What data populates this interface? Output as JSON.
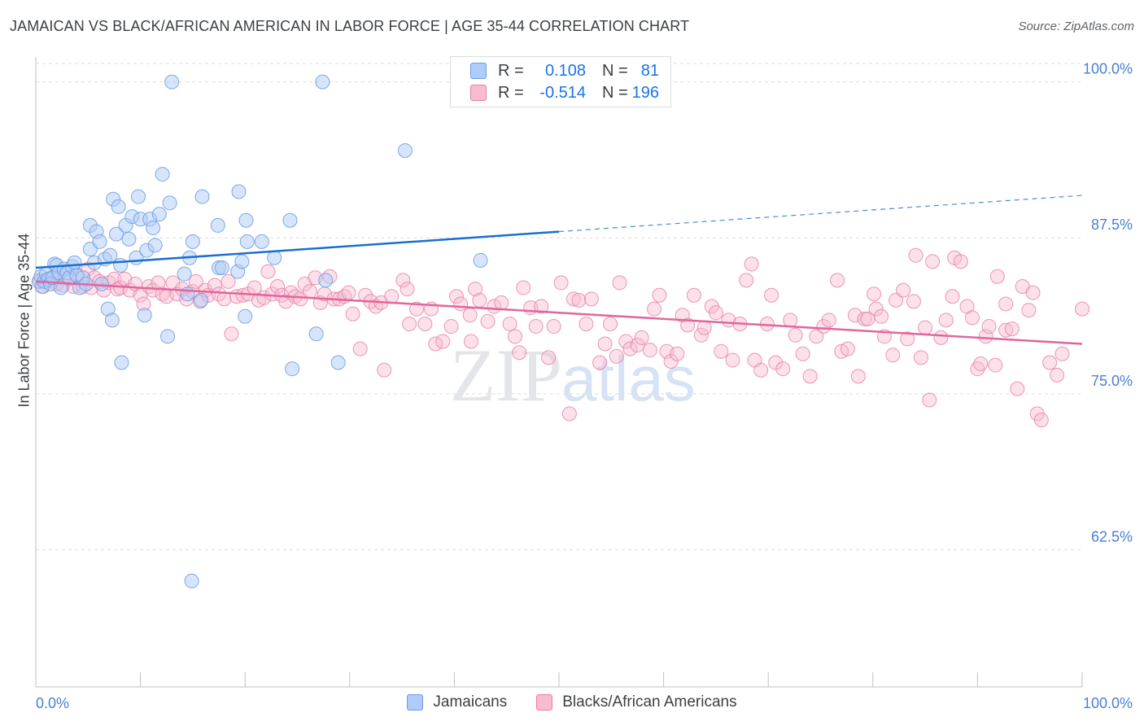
{
  "title": "JAMAICAN VS BLACK/AFRICAN AMERICAN IN LABOR FORCE | AGE 35-44 CORRELATION CHART",
  "source": "Source: ZipAtlas.com",
  "watermark": {
    "zip": "ZIP",
    "atlas": "atlas"
  },
  "legend": {
    "r_label": "R =",
    "n_label": "N =",
    "rows": [
      {
        "r": "0.108",
        "n": "81"
      },
      {
        "r": "-0.514",
        "n": "196"
      }
    ]
  },
  "colors": {
    "jamaican_fill": "#aecbfa",
    "jamaican_stroke": "#6c9be0",
    "jamaican_line": "#1a6fcf",
    "black_fill": "#f8bbd0",
    "black_stroke": "#e67ea6",
    "black_line": "#e0679a",
    "axis_label": "#4a7fd4",
    "grid": "#dadce0"
  },
  "chart_data": {
    "type": "scatter",
    "title": "JAMAICAN VS BLACK/AFRICAN AMERICAN IN LABOR FORCE | AGE 35-44 CORRELATION CHART",
    "xlabel": "",
    "ylabel": "In Labor Force | Age 35-44",
    "xlim": [
      0,
      100
    ],
    "ylim": [
      51.5,
      102
    ],
    "x_tick_labels": [
      "0.0%",
      "100.0%"
    ],
    "y_ticks": [
      62.5,
      75.0,
      87.5,
      100.0
    ],
    "y_tick_labels": [
      "62.5%",
      "75.0%",
      "87.5%",
      "100.0%"
    ],
    "grid": true,
    "legend_position": "bottom",
    "series": [
      {
        "name": "Jamaicans",
        "r": 0.108,
        "n": 81,
        "trend": {
          "x0": 0,
          "y0": 85.1,
          "x1": 50,
          "y1": 88.0,
          "dash_to_x": 100,
          "dash_to_y": 90.9
        },
        "points": [
          [
            0.3,
            84.0
          ],
          [
            0.5,
            84.4
          ],
          [
            0.6,
            83.6
          ],
          [
            0.8,
            84.0
          ],
          [
            1.0,
            84.6
          ],
          [
            1.2,
            84.2
          ],
          [
            1.4,
            83.8
          ],
          [
            1.6,
            84.3
          ],
          [
            1.8,
            85.4
          ],
          [
            2.0,
            85.3
          ],
          [
            2.2,
            84.7
          ],
          [
            2.4,
            83.5
          ],
          [
            2.7,
            85.0
          ],
          [
            3.0,
            84.7
          ],
          [
            3.2,
            84.3
          ],
          [
            3.5,
            85.2
          ],
          [
            3.7,
            85.5
          ],
          [
            3.9,
            84.5
          ],
          [
            4.2,
            83.5
          ],
          [
            4.5,
            84.3
          ],
          [
            4.8,
            83.8
          ],
          [
            5.2,
            86.6
          ],
          [
            5.2,
            88.5
          ],
          [
            5.6,
            85.5
          ],
          [
            5.8,
            88.0
          ],
          [
            6.1,
            87.2
          ],
          [
            6.3,
            83.8
          ],
          [
            6.6,
            85.8
          ],
          [
            6.9,
            81.8
          ],
          [
            7.1,
            86.1
          ],
          [
            7.3,
            80.9
          ],
          [
            7.4,
            90.6
          ],
          [
            7.7,
            87.8
          ],
          [
            7.9,
            90.0
          ],
          [
            8.1,
            85.3
          ],
          [
            8.2,
            77.5
          ],
          [
            8.6,
            88.5
          ],
          [
            8.9,
            87.4
          ],
          [
            9.2,
            89.2
          ],
          [
            9.6,
            85.9
          ],
          [
            9.8,
            90.8
          ],
          [
            10.0,
            89.0
          ],
          [
            10.4,
            81.3
          ],
          [
            10.6,
            86.5
          ],
          [
            10.9,
            89.0
          ],
          [
            11.2,
            88.3
          ],
          [
            11.4,
            86.9
          ],
          [
            11.8,
            89.4
          ],
          [
            12.1,
            92.6
          ],
          [
            12.6,
            79.6
          ],
          [
            12.8,
            90.3
          ],
          [
            13.0,
            100.0
          ],
          [
            14.2,
            84.6
          ],
          [
            14.5,
            83.0
          ],
          [
            14.7,
            85.9
          ],
          [
            15.0,
            87.2
          ],
          [
            14.9,
            60.0
          ],
          [
            15.8,
            82.5
          ],
          [
            15.9,
            90.8
          ],
          [
            17.4,
            88.5
          ],
          [
            17.5,
            85.1
          ],
          [
            17.8,
            85.1
          ],
          [
            19.3,
            84.8
          ],
          [
            19.4,
            91.2
          ],
          [
            19.7,
            85.6
          ],
          [
            20.0,
            81.2
          ],
          [
            20.1,
            88.9
          ],
          [
            20.2,
            87.2
          ],
          [
            21.6,
            87.2
          ],
          [
            22.8,
            85.9
          ],
          [
            24.3,
            88.9
          ],
          [
            24.5,
            77.0
          ],
          [
            26.8,
            79.8
          ],
          [
            27.4,
            100.0
          ],
          [
            27.7,
            84.1
          ],
          [
            28.9,
            77.5
          ],
          [
            35.3,
            94.5
          ],
          [
            42.5,
            85.7
          ]
        ]
      },
      {
        "name": "Blacks/African Americans",
        "r": -0.514,
        "n": 196,
        "trend": {
          "x0": 0,
          "y0": 84.0,
          "x1": 100,
          "y1": 79.0
        },
        "points": [
          [
            0.4,
            84.1
          ],
          [
            0.7,
            83.6
          ],
          [
            1.0,
            84.0
          ],
          [
            1.5,
            84.3
          ],
          [
            1.8,
            84.4
          ],
          [
            2.0,
            83.8
          ],
          [
            2.3,
            84.3
          ],
          [
            2.6,
            83.7
          ],
          [
            3.2,
            84.2
          ],
          [
            3.6,
            83.6
          ],
          [
            4.0,
            84.5
          ],
          [
            4.5,
            83.6
          ],
          [
            5.0,
            85.0
          ],
          [
            5.3,
            83.5
          ],
          [
            5.6,
            84.3
          ],
          [
            6.1,
            84.0
          ],
          [
            6.5,
            83.3
          ],
          [
            7.0,
            83.9
          ],
          [
            7.5,
            84.2
          ],
          [
            7.8,
            83.4
          ],
          [
            8.1,
            83.5
          ],
          [
            8.5,
            84.2
          ],
          [
            9.0,
            83.3
          ],
          [
            9.5,
            83.8
          ],
          [
            10.0,
            82.9
          ],
          [
            10.3,
            82.2
          ],
          [
            10.8,
            83.6
          ],
          [
            11.2,
            83.3
          ],
          [
            11.7,
            83.9
          ],
          [
            12.1,
            83.0
          ],
          [
            12.5,
            82.8
          ],
          [
            13.1,
            83.9
          ],
          [
            13.5,
            83.0
          ],
          [
            14.0,
            83.4
          ],
          [
            14.4,
            82.6
          ],
          [
            15.0,
            83.2
          ],
          [
            15.3,
            84.0
          ],
          [
            15.7,
            82.4
          ],
          [
            16.2,
            83.3
          ],
          [
            16.5,
            82.9
          ],
          [
            17.1,
            83.7
          ],
          [
            17.5,
            83.0
          ],
          [
            18.0,
            82.6
          ],
          [
            18.4,
            84.0
          ],
          [
            18.7,
            79.8
          ],
          [
            19.2,
            82.8
          ],
          [
            19.8,
            82.9
          ],
          [
            20.3,
            83.0
          ],
          [
            20.9,
            83.5
          ],
          [
            21.3,
            82.5
          ],
          [
            21.8,
            82.7
          ],
          [
            22.2,
            84.8
          ],
          [
            22.6,
            83.0
          ],
          [
            23.1,
            83.6
          ],
          [
            23.5,
            82.9
          ],
          [
            23.9,
            82.4
          ],
          [
            24.4,
            83.1
          ],
          [
            24.8,
            82.8
          ],
          [
            25.3,
            82.6
          ],
          [
            25.7,
            83.8
          ],
          [
            26.2,
            83.2
          ],
          [
            26.7,
            84.3
          ],
          [
            27.2,
            82.3
          ],
          [
            27.6,
            83.0
          ],
          [
            28.1,
            84.4
          ],
          [
            28.5,
            82.6
          ],
          [
            29.0,
            82.6
          ],
          [
            29.5,
            82.8
          ],
          [
            29.9,
            83.1
          ],
          [
            30.3,
            81.4
          ],
          [
            31.0,
            78.6
          ],
          [
            31.5,
            82.9
          ],
          [
            32.0,
            82.4
          ],
          [
            32.5,
            82.0
          ],
          [
            33.0,
            82.3
          ],
          [
            33.3,
            76.9
          ],
          [
            34.0,
            82.8
          ],
          [
            35.1,
            84.1
          ],
          [
            35.5,
            83.4
          ],
          [
            35.7,
            80.6
          ],
          [
            36.4,
            81.8
          ],
          [
            37.2,
            80.6
          ],
          [
            37.8,
            81.8
          ],
          [
            38.2,
            79.0
          ],
          [
            38.9,
            79.2
          ],
          [
            39.7,
            80.4
          ],
          [
            40.2,
            82.8
          ],
          [
            40.6,
            82.2
          ],
          [
            41.5,
            81.3
          ],
          [
            41.6,
            79.2
          ],
          [
            42.0,
            83.4
          ],
          [
            42.4,
            82.5
          ],
          [
            43.2,
            80.8
          ],
          [
            43.8,
            82.0
          ],
          [
            44.5,
            82.3
          ],
          [
            45.3,
            80.6
          ],
          [
            45.8,
            79.6
          ],
          [
            46.2,
            78.3
          ],
          [
            46.6,
            83.5
          ],
          [
            47.3,
            81.9
          ],
          [
            47.8,
            80.4
          ],
          [
            48.3,
            82.0
          ],
          [
            49.0,
            77.9
          ],
          [
            49.5,
            80.4
          ],
          [
            50.2,
            83.9
          ],
          [
            51.0,
            73.4
          ],
          [
            51.4,
            82.6
          ],
          [
            51.9,
            82.5
          ],
          [
            52.6,
            80.6
          ],
          [
            53.1,
            82.6
          ],
          [
            53.9,
            77.5
          ],
          [
            54.4,
            79.0
          ],
          [
            54.9,
            80.6
          ],
          [
            55.5,
            78.0
          ],
          [
            55.8,
            83.9
          ],
          [
            56.4,
            79.2
          ],
          [
            56.8,
            78.6
          ],
          [
            57.5,
            78.9
          ],
          [
            57.9,
            79.5
          ],
          [
            58.7,
            78.5
          ],
          [
            59.1,
            81.8
          ],
          [
            59.6,
            82.9
          ],
          [
            60.3,
            78.4
          ],
          [
            60.7,
            77.6
          ],
          [
            61.3,
            78.2
          ],
          [
            61.8,
            81.3
          ],
          [
            62.3,
            80.5
          ],
          [
            62.9,
            82.9
          ],
          [
            63.6,
            79.7
          ],
          [
            63.9,
            80.3
          ],
          [
            64.6,
            82.0
          ],
          [
            65.0,
            81.5
          ],
          [
            65.5,
            78.4
          ],
          [
            66.2,
            80.9
          ],
          [
            66.6,
            77.7
          ],
          [
            67.3,
            80.6
          ],
          [
            67.9,
            84.1
          ],
          [
            68.4,
            85.4
          ],
          [
            68.7,
            77.7
          ],
          [
            69.3,
            76.9
          ],
          [
            69.9,
            80.6
          ],
          [
            70.3,
            82.9
          ],
          [
            70.7,
            77.5
          ],
          [
            71.4,
            77.0
          ],
          [
            72.1,
            80.9
          ],
          [
            72.6,
            79.7
          ],
          [
            73.3,
            78.2
          ],
          [
            74.0,
            76.4
          ],
          [
            74.6,
            79.6
          ],
          [
            75.3,
            80.4
          ],
          [
            75.8,
            80.9
          ],
          [
            76.6,
            84.1
          ],
          [
            77.0,
            78.4
          ],
          [
            77.6,
            78.6
          ],
          [
            78.3,
            81.3
          ],
          [
            78.6,
            76.4
          ],
          [
            79.2,
            81.0
          ],
          [
            79.5,
            81.0
          ],
          [
            80.1,
            83.0
          ],
          [
            80.3,
            81.8
          ],
          [
            80.8,
            81.2
          ],
          [
            81.1,
            79.6
          ],
          [
            81.9,
            78.1
          ],
          [
            82.2,
            82.5
          ],
          [
            82.9,
            83.3
          ],
          [
            83.3,
            79.4
          ],
          [
            83.9,
            82.4
          ],
          [
            84.1,
            86.1
          ],
          [
            84.6,
            77.9
          ],
          [
            85.0,
            80.3
          ],
          [
            85.4,
            74.5
          ],
          [
            85.7,
            85.6
          ],
          [
            86.5,
            79.5
          ],
          [
            87.0,
            80.9
          ],
          [
            87.6,
            82.8
          ],
          [
            87.8,
            85.9
          ],
          [
            88.4,
            85.6
          ],
          [
            89.0,
            82.0
          ],
          [
            89.5,
            81.1
          ],
          [
            90.0,
            77.0
          ],
          [
            90.3,
            77.4
          ],
          [
            90.8,
            79.6
          ],
          [
            91.1,
            80.4
          ],
          [
            91.7,
            77.3
          ],
          [
            91.9,
            84.4
          ],
          [
            92.7,
            82.2
          ],
          [
            92.7,
            80.1
          ],
          [
            93.3,
            80.2
          ],
          [
            93.8,
            75.4
          ],
          [
            94.3,
            83.6
          ],
          [
            94.9,
            81.7
          ],
          [
            95.3,
            83.1
          ],
          [
            95.7,
            73.4
          ],
          [
            96.1,
            72.9
          ],
          [
            96.9,
            77.5
          ],
          [
            97.6,
            76.5
          ],
          [
            98.1,
            78.2
          ],
          [
            100.0,
            81.8
          ]
        ]
      }
    ]
  }
}
